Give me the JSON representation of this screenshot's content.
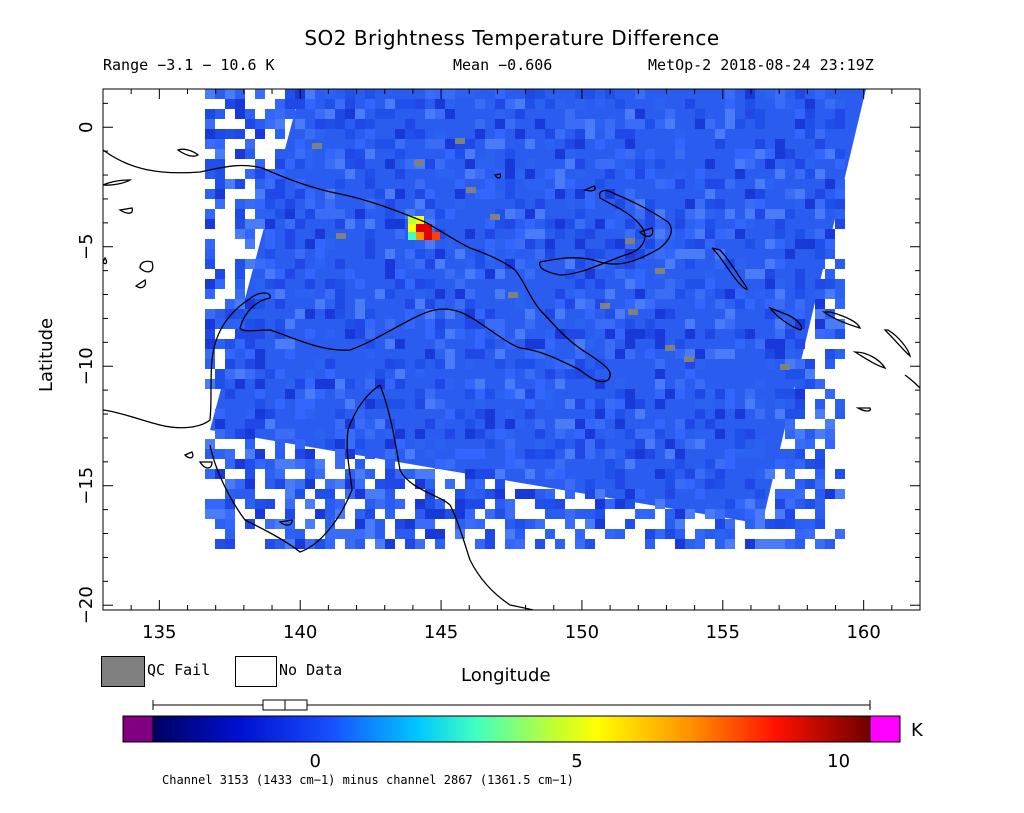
{
  "title": "SO2 Brightness Temperature Difference",
  "header": {
    "range": "Range −3.1 − 10.6 K",
    "mean": "Mean −0.606",
    "satellite": "MetOp-2 2018-08-24 23:19Z"
  },
  "axes": {
    "xlabel": "Longitude",
    "ylabel": "Latitude",
    "x_ticks": [
      "135",
      "140",
      "145",
      "150",
      "155",
      "160"
    ],
    "y_ticks": [
      "0",
      "−5",
      "−10",
      "−15",
      "−20"
    ],
    "x_range": [
      133,
      162
    ],
    "y_range": [
      -20.2,
      1.6
    ]
  },
  "legend": {
    "qc_fail": "QC Fail",
    "no_data": "No Data"
  },
  "colorbar": {
    "unit": "K",
    "ticks": [
      "0",
      "5",
      "10"
    ],
    "range": [
      -3.1,
      10.6
    ],
    "underflow_color": "#800080",
    "overflow_color": "#ff00ff"
  },
  "footnote": "Channel 3153 (1433 cm−1) minus channel 2867 (1361.5 cm−1)",
  "colors": {
    "background_field": "#2a5cf0",
    "hotspot": "#e00000",
    "qc_fail": "#808080"
  }
}
